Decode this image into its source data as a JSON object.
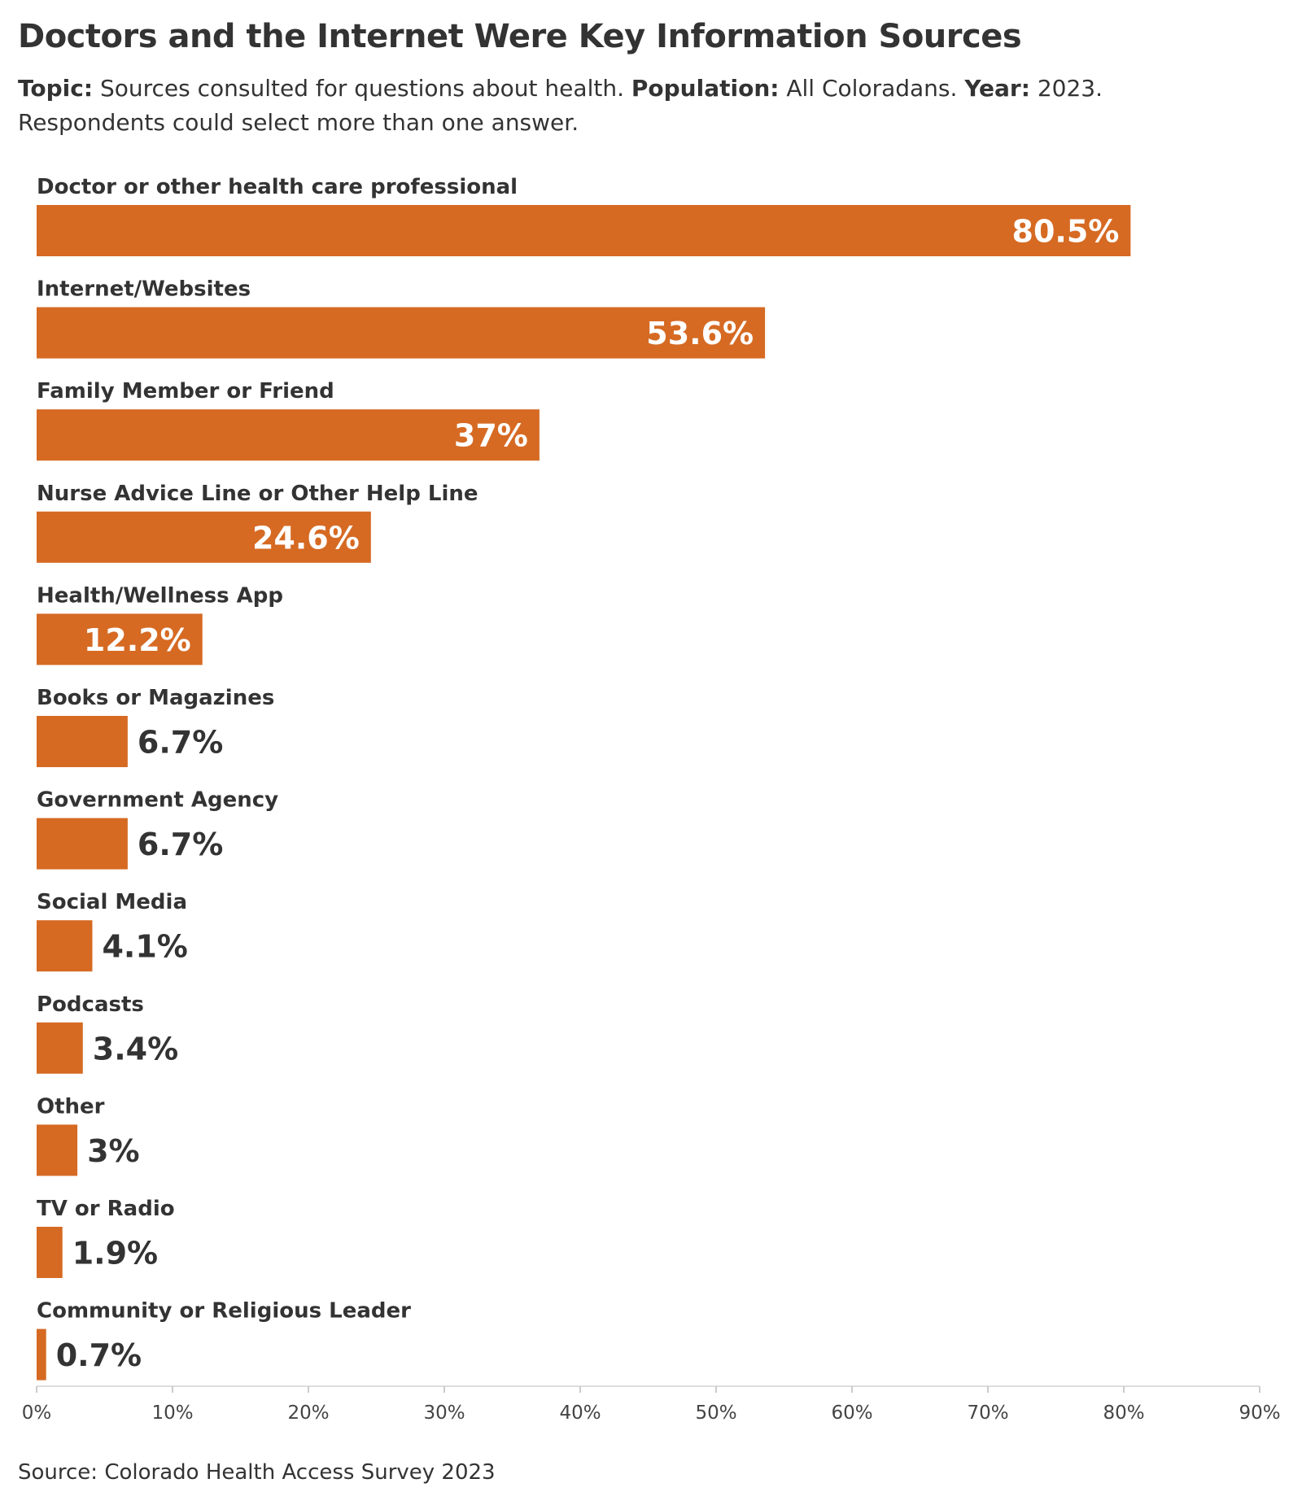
{
  "header": {
    "title": "Doctors and the Internet Were Key Information Sources",
    "topic_label": "Topic:",
    "topic_text": "Sources consulted for questions about health.",
    "population_label": "Population:",
    "population_text": "All Coloradans.",
    "year_label": "Year:",
    "year_text": "2023.",
    "note": "Respondents could select more than one answer."
  },
  "footer": {
    "source": "Source: Colorado Health Access Survey 2023"
  },
  "chart_data": {
    "type": "bar",
    "orientation": "horizontal",
    "bar_color": "#d66a23",
    "categories": [
      "Doctor or other health care professional",
      "Internet/Websites",
      "Family Member or Friend",
      "Nurse Advice Line or Other Help Line",
      "Health/Wellness App",
      "Books or Magazines",
      "Government Agency",
      "Social Media",
      "Podcasts",
      "Other",
      "TV or Radio",
      "Community or Religious Leader"
    ],
    "values": [
      80.5,
      53.6,
      37,
      24.6,
      12.2,
      6.7,
      6.7,
      4.1,
      3.4,
      3,
      1.9,
      0.7
    ],
    "value_labels": [
      "80.5%",
      "53.6%",
      "37%",
      "24.6%",
      "12.2%",
      "6.7%",
      "6.7%",
      "4.1%",
      "3.4%",
      "3%",
      "1.9%",
      "0.7%"
    ],
    "xlim": [
      0,
      90
    ],
    "xticks": [
      0,
      10,
      20,
      30,
      40,
      50,
      60,
      70,
      80,
      90
    ],
    "xtick_labels": [
      "0%",
      "10%",
      "20%",
      "30%",
      "40%",
      "50%",
      "60%",
      "70%",
      "80%",
      "90%"
    ],
    "grid": false
  }
}
